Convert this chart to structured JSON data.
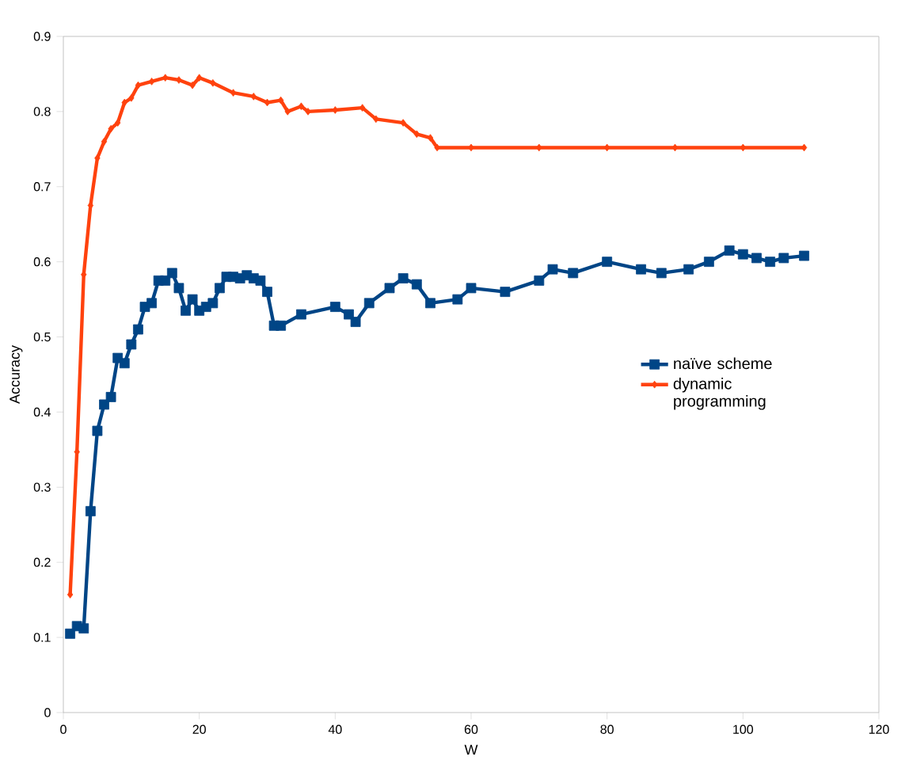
{
  "chart_data": {
    "type": "line",
    "xlabel": "W",
    "ylabel": "Accuracy",
    "xlim": [
      0,
      120
    ],
    "xticks": [
      0,
      20,
      40,
      60,
      80,
      100,
      120
    ],
    "ylim": [
      0,
      0.9
    ],
    "yticks": [
      0,
      0.1,
      0.2,
      0.3,
      0.4,
      0.5,
      0.6,
      0.7,
      0.8,
      0.9
    ],
    "legend": "right",
    "grid": false,
    "series": [
      {
        "name": "naïve scheme",
        "color": "#004586",
        "marker": "square",
        "x": [
          1,
          2,
          3,
          4,
          5,
          6,
          7,
          8,
          9,
          10,
          11,
          12,
          13,
          14,
          15,
          16,
          17,
          18,
          19,
          20,
          21,
          22,
          23,
          24,
          25,
          26,
          27,
          28,
          29,
          30,
          31,
          32,
          35,
          40,
          42,
          43,
          45,
          48,
          50,
          52,
          54,
          58,
          60,
          65,
          70,
          72,
          75,
          80,
          85,
          88,
          92,
          95,
          98,
          100,
          102,
          104,
          106,
          109
        ],
        "values": [
          0.105,
          0.115,
          0.112,
          0.268,
          0.375,
          0.41,
          0.42,
          0.472,
          0.465,
          0.49,
          0.51,
          0.54,
          0.545,
          0.575,
          0.575,
          0.585,
          0.565,
          0.535,
          0.55,
          0.535,
          0.54,
          0.545,
          0.565,
          0.58,
          0.58,
          0.578,
          0.582,
          0.578,
          0.575,
          0.56,
          0.515,
          0.515,
          0.53,
          0.54,
          0.53,
          0.52,
          0.545,
          0.565,
          0.578,
          0.57,
          0.545,
          0.55,
          0.565,
          0.56,
          0.575,
          0.59,
          0.585,
          0.6,
          0.59,
          0.585,
          0.59,
          0.6,
          0.615,
          0.61,
          0.605,
          0.6,
          0.605,
          0.608
        ]
      },
      {
        "name": "dynamic programming",
        "color": "#ff420e",
        "marker": "diamond",
        "x": [
          1,
          2,
          3,
          4,
          5,
          6,
          7,
          8,
          9,
          10,
          11,
          13,
          15,
          17,
          19,
          20,
          22,
          25,
          28,
          30,
          32,
          33,
          35,
          36,
          40,
          44,
          46,
          50,
          52,
          54,
          55,
          60,
          70,
          80,
          90,
          100,
          109
        ],
        "values": [
          0.157,
          0.347,
          0.583,
          0.675,
          0.738,
          0.76,
          0.777,
          0.785,
          0.812,
          0.818,
          0.835,
          0.84,
          0.845,
          0.842,
          0.835,
          0.845,
          0.838,
          0.825,
          0.82,
          0.812,
          0.815,
          0.8,
          0.807,
          0.8,
          0.802,
          0.805,
          0.79,
          0.785,
          0.77,
          0.765,
          0.752,
          0.752,
          0.752,
          0.752,
          0.752,
          0.752,
          0.752
        ]
      }
    ]
  }
}
